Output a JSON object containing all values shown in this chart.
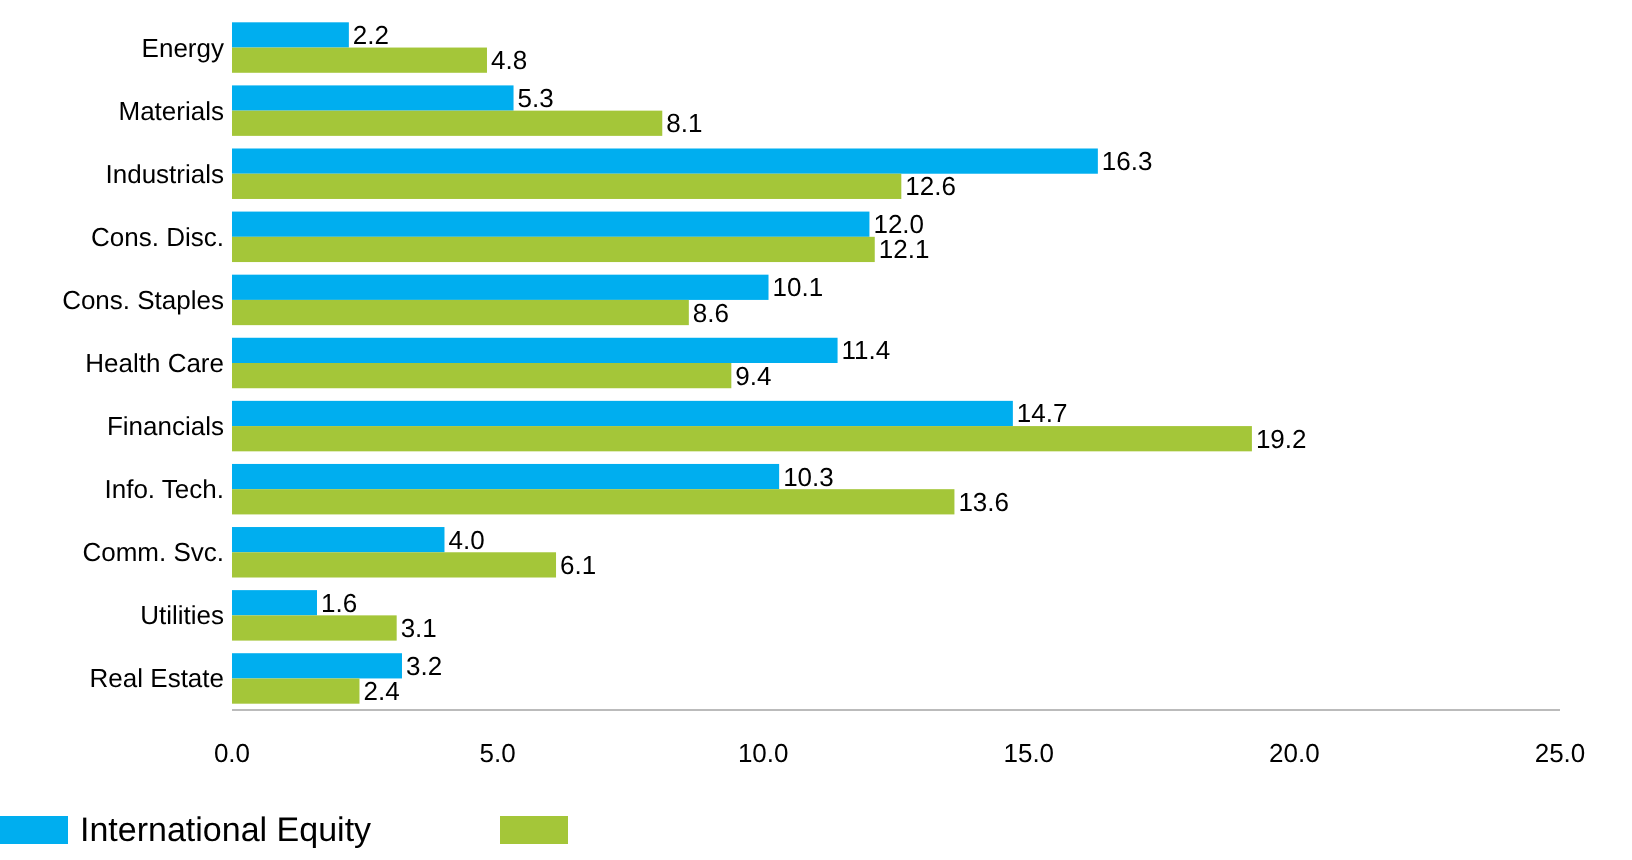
{
  "chart_data": {
    "type": "bar",
    "orientation": "horizontal",
    "categories": [
      "Energy",
      "Materials",
      "Industrials",
      "Cons. Disc.",
      "Cons. Staples",
      "Health Care",
      "Financials",
      "Info. Tech.",
      "Comm. Svc.",
      "Utilities",
      "Real Estate"
    ],
    "series": [
      {
        "name": "International Equity",
        "color": "#00aeef",
        "values": [
          2.2,
          5.3,
          16.3,
          12.0,
          10.1,
          11.4,
          14.7,
          10.3,
          4.0,
          1.6,
          3.2
        ],
        "value_labels": [
          "2.2",
          "5.3",
          "16.3",
          "12.0",
          "10.1",
          "11.4",
          "14.7",
          "10.3",
          "4.0",
          "1.6",
          "3.2"
        ]
      },
      {
        "color": "#a4c639",
        "values": [
          4.8,
          8.1,
          12.6,
          12.1,
          8.6,
          9.4,
          19.2,
          13.6,
          6.1,
          3.1,
          2.4
        ],
        "value_labels": [
          "4.8",
          "8.1",
          "12.6",
          "12.1",
          "8.6",
          "9.4",
          "19.2",
          "13.6",
          "6.1",
          "3.1",
          "2.4"
        ]
      }
    ],
    "xlim": [
      0,
      25
    ],
    "xticks": [
      {
        "value": 0,
        "label": "0.0"
      },
      {
        "value": 5,
        "label": "5.0"
      },
      {
        "value": 10,
        "label": "10.0"
      },
      {
        "value": 15,
        "label": "15.0"
      },
      {
        "value": 20,
        "label": "20.0"
      },
      {
        "value": 25,
        "label": "25.0"
      }
    ],
    "grid": false,
    "legend": "bottom"
  }
}
